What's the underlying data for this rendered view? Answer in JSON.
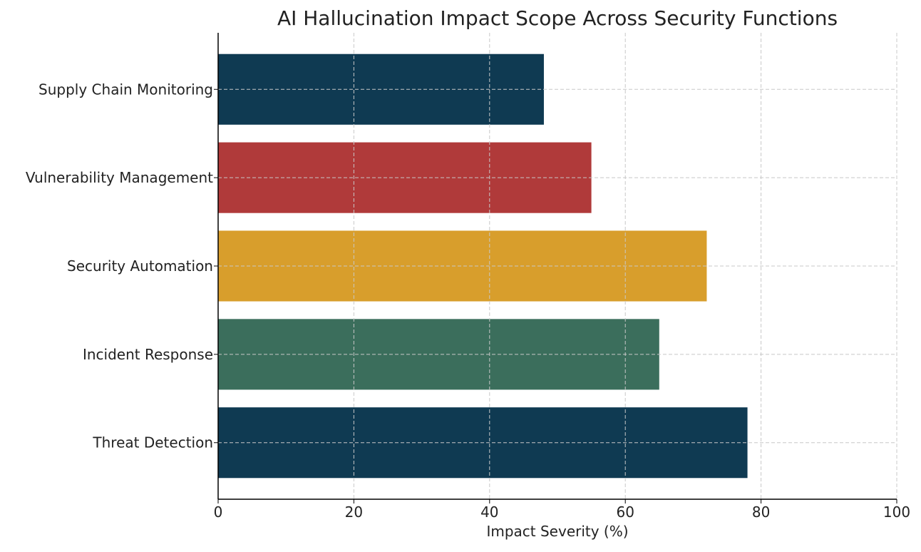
{
  "chart_data": {
    "type": "bar",
    "orientation": "horizontal",
    "title": "AI Hallucination Impact Scope Across Security Functions",
    "xlabel": "Impact Severity (%)",
    "ylabel": "",
    "categories": [
      "Threat Detection",
      "Incident Response",
      "Security Automation",
      "Vulnerability Management",
      "Supply Chain Monitoring"
    ],
    "values": [
      78,
      65,
      72,
      55,
      48
    ],
    "colors": [
      "#0f3a52",
      "#3b6e5c",
      "#d89e2c",
      "#b03a3a",
      "#0f3a52"
    ],
    "xlim": [
      0,
      100
    ],
    "xticks": [
      0,
      20,
      40,
      60,
      80,
      100
    ],
    "grid": true
  }
}
